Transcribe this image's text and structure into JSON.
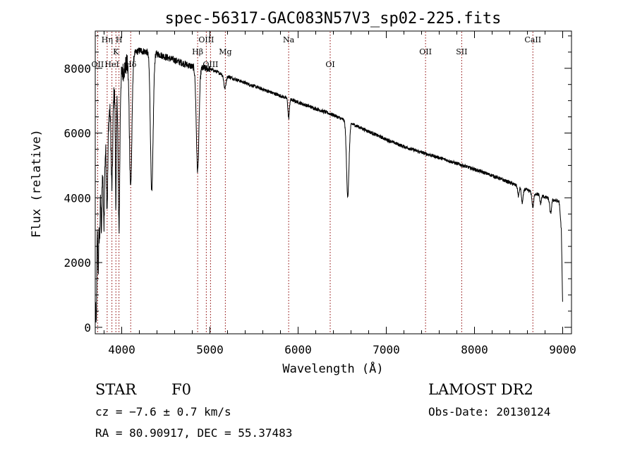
{
  "chart_data": {
    "type": "line",
    "title": "spec-56317-GAC083N57V3_sp02-225.fits",
    "xlabel": "Wavelength (Å)",
    "ylabel": "Flux (relative)",
    "xlim": [
      3700,
      9100
    ],
    "ylim": [
      -200,
      9150
    ],
    "xticks": [
      4000,
      5000,
      6000,
      7000,
      8000,
      9000
    ],
    "yticks": [
      0,
      2000,
      4000,
      6000,
      8000
    ],
    "line_color": "#000000",
    "marker_color": "#8b0000",
    "spectral_lines": [
      {
        "label": "OII",
        "wavelength": 3727,
        "row": 2
      },
      {
        "label": "Hη",
        "wavelength": 3835,
        "row": 0
      },
      {
        "label": "HeI",
        "wavelength": 3889,
        "row": 2
      },
      {
        "label": "K",
        "wavelength": 3934,
        "row": 1
      },
      {
        "label": "H",
        "wavelength": 3969,
        "row": 0
      },
      {
        "label": "Hδ",
        "wavelength": 4102,
        "row": 2
      },
      {
        "label": "Hβ",
        "wavelength": 4861,
        "row": 1
      },
      {
        "label": "OIII",
        "wavelength": 4959,
        "row": 0
      },
      {
        "label": "OIII",
        "wavelength": 5007,
        "row": 2
      },
      {
        "label": "Mg",
        "wavelength": 5175,
        "row": 1
      },
      {
        "label": "Na",
        "wavelength": 5893,
        "row": 0
      },
      {
        "label": "OI",
        "wavelength": 6364,
        "row": 2
      },
      {
        "label": "OII",
        "wavelength": 7445,
        "row": 1
      },
      {
        "label": "SII",
        "wavelength": 7855,
        "row": 1
      },
      {
        "label": "CaII",
        "wavelength": 8662,
        "row": 0
      }
    ],
    "continuum": [
      [
        3705,
        1500
      ],
      [
        3720,
        3000
      ],
      [
        3760,
        4700
      ],
      [
        3800,
        5200
      ],
      [
        3850,
        6500
      ],
      [
        3900,
        7200
      ],
      [
        4000,
        7800
      ],
      [
        4100,
        8400
      ],
      [
        4200,
        8550
      ],
      [
        4300,
        8500
      ],
      [
        4400,
        8450
      ],
      [
        4500,
        8350
      ],
      [
        4600,
        8250
      ],
      [
        4700,
        8150
      ],
      [
        4800,
        8050
      ],
      [
        5000,
        7980
      ],
      [
        5200,
        7750
      ],
      [
        5400,
        7550
      ],
      [
        5600,
        7350
      ],
      [
        5800,
        7150
      ],
      [
        6000,
        6950
      ],
      [
        6200,
        6750
      ],
      [
        6400,
        6560
      ],
      [
        6600,
        6300
      ],
      [
        6800,
        6050
      ],
      [
        7000,
        5800
      ],
      [
        7200,
        5580
      ],
      [
        7400,
        5400
      ],
      [
        7600,
        5240
      ],
      [
        7800,
        5060
      ],
      [
        8000,
        4880
      ],
      [
        8200,
        4690
      ],
      [
        8400,
        4470
      ],
      [
        8600,
        4230
      ],
      [
        8800,
        4020
      ],
      [
        8960,
        3880
      ],
      [
        8985,
        3000
      ],
      [
        9000,
        600
      ]
    ],
    "absorption_features": [
      {
        "wavelength": 3712,
        "depth": 2200,
        "width": 5
      },
      {
        "wavelength": 3734,
        "depth": 1800,
        "width": 5
      },
      {
        "wavelength": 3750,
        "depth": 1500,
        "width": 6
      },
      {
        "wavelength": 3770,
        "depth": 1700,
        "width": 6
      },
      {
        "wavelength": 3798,
        "depth": 2000,
        "width": 7
      },
      {
        "wavelength": 3835,
        "depth": 2300,
        "width": 8
      },
      {
        "wavelength": 3889,
        "depth": 2700,
        "width": 9
      },
      {
        "wavelength": 3934,
        "depth": 3500,
        "width": 6
      },
      {
        "wavelength": 3969,
        "depth": 4600,
        "width": 9
      },
      {
        "wavelength": 4102,
        "depth": 4000,
        "width": 14
      },
      {
        "wavelength": 4341,
        "depth": 4300,
        "width": 15
      },
      {
        "wavelength": 4861,
        "depth": 3200,
        "width": 15
      },
      {
        "wavelength": 5170,
        "depth": 400,
        "width": 12
      },
      {
        "wavelength": 5893,
        "depth": 600,
        "width": 8
      },
      {
        "wavelength": 6563,
        "depth": 2300,
        "width": 14
      },
      {
        "wavelength": 8498,
        "depth": 300,
        "width": 8
      },
      {
        "wavelength": 8542,
        "depth": 450,
        "width": 10
      },
      {
        "wavelength": 8662,
        "depth": 450,
        "width": 10
      },
      {
        "wavelength": 8750,
        "depth": 250,
        "width": 8
      },
      {
        "wavelength": 8863,
        "depth": 450,
        "width": 10
      }
    ]
  },
  "info": {
    "object_class": "STAR",
    "subclass": "F0",
    "survey": "LAMOST DR2",
    "redshift": "cz = −7.6 ± 0.7 km/s",
    "obs_date": "Obs-Date: 20130124",
    "coords": "RA =  80.90917, DEC =  55.37483"
  }
}
